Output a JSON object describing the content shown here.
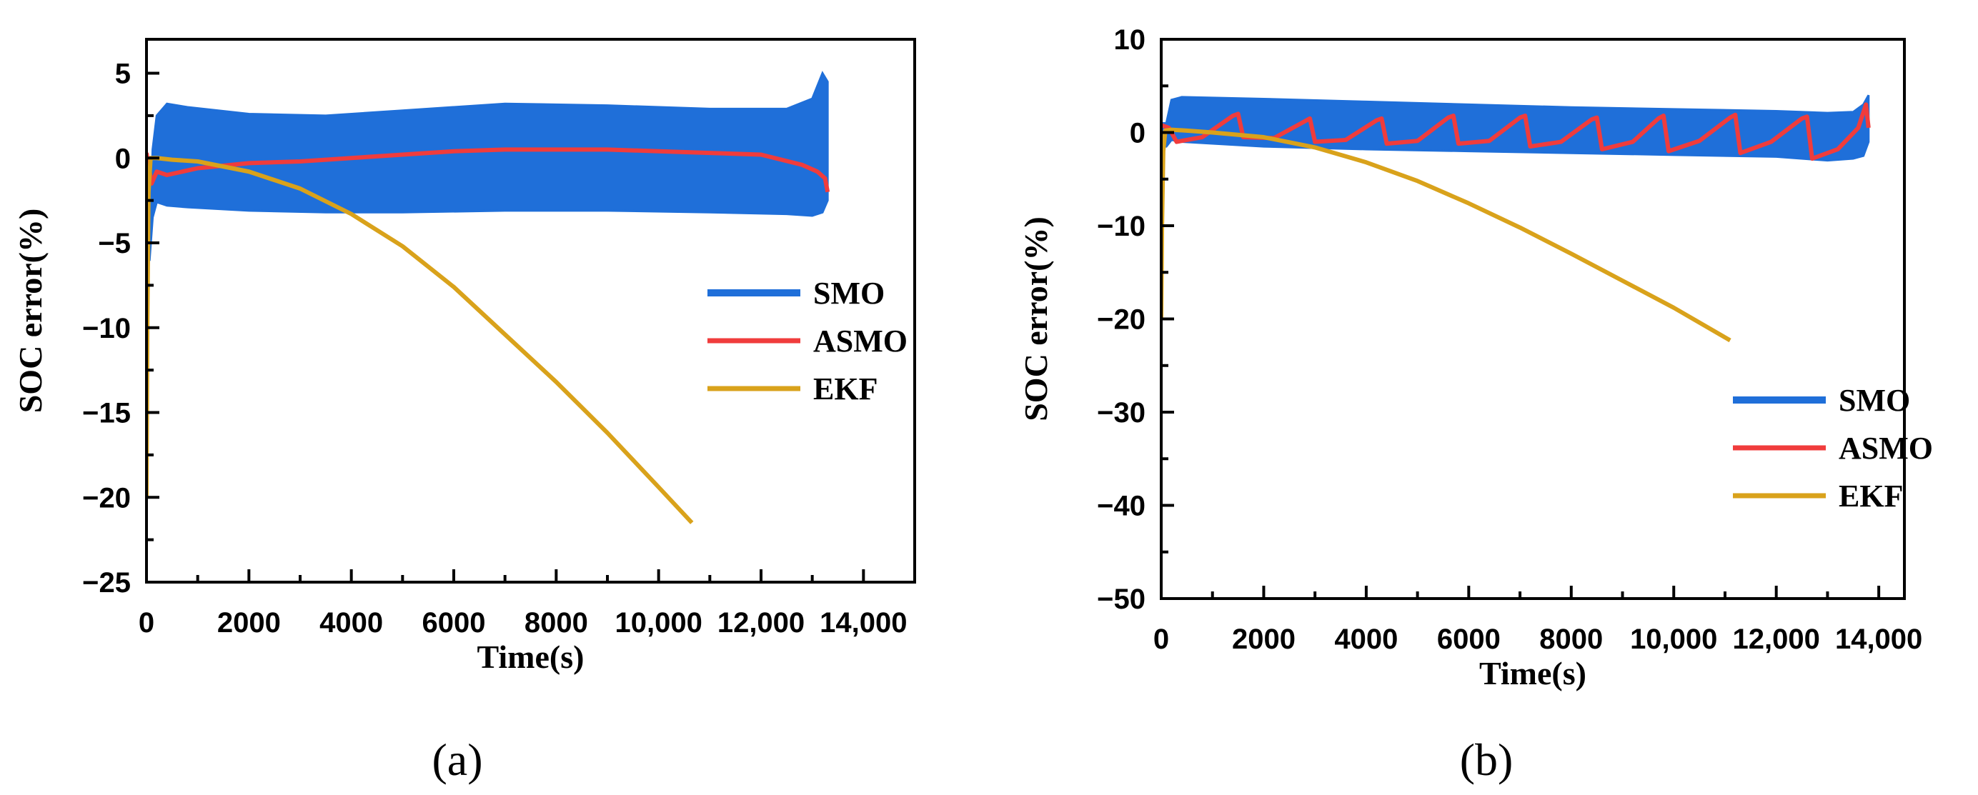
{
  "chart_data": [
    {
      "type": "line",
      "panel_label": "(a)",
      "xlabel": "Time(s)",
      "ylabel": "SOC error(%)",
      "xlim": [
        0,
        15000
      ],
      "ylim": [
        -25,
        7
      ],
      "x_ticks": [
        0,
        2000,
        4000,
        6000,
        8000,
        10000,
        12000,
        14000
      ],
      "x_tick_labels": [
        "0",
        "2000",
        "4000",
        "6000",
        "8000",
        "10,000",
        "12,000",
        "14,000"
      ],
      "y_ticks": [
        5,
        0,
        -5,
        -10,
        -15,
        -20,
        -25
      ],
      "y_tick_labels": [
        "5",
        "0",
        "−5",
        "−10",
        "−15",
        "−20",
        "−25"
      ],
      "legend_position": "center-right",
      "series": [
        {
          "name": "SMO",
          "color": "#1f6fd9",
          "x": [
            0,
            60,
            120,
            200,
            400,
            800,
            2000,
            3500,
            5000,
            7000,
            9000,
            11000,
            12500,
            13000,
            13200,
            13300
          ],
          "upper": [
            -2,
            -5,
            0.5,
            2.5,
            3.2,
            3.0,
            2.6,
            2.5,
            2.8,
            3.2,
            3.1,
            2.9,
            2.9,
            3.5,
            5.0,
            4.5
          ],
          "lower": [
            -6,
            -6,
            -3.5,
            -2.6,
            -2.8,
            -2.9,
            -3.1,
            -3.2,
            -3.2,
            -3.1,
            -3.1,
            -3.2,
            -3.3,
            -3.4,
            -3.2,
            -2.5
          ]
        },
        {
          "name": "ASMO",
          "color": "#f03c3c",
          "x": [
            0,
            100,
            200,
            400,
            1000,
            2000,
            3000,
            4000,
            5000,
            6000,
            7000,
            8000,
            9000,
            10000,
            11000,
            12000,
            12800,
            13100,
            13250,
            13300
          ],
          "y": [
            0.3,
            -1.5,
            -0.8,
            -1.0,
            -0.6,
            -0.3,
            -0.2,
            0.0,
            0.2,
            0.4,
            0.5,
            0.5,
            0.5,
            0.4,
            0.3,
            0.2,
            -0.4,
            -0.8,
            -1.2,
            -2.0
          ]
        },
        {
          "name": "EKF",
          "color": "#d9a21b",
          "x": [
            0,
            15,
            40,
            80,
            200,
            500,
            1000,
            2000,
            3000,
            4000,
            5000,
            6000,
            7000,
            8000,
            9000,
            10000,
            10650
          ],
          "y": [
            -20,
            -10,
            -2,
            0,
            0,
            -0.1,
            -0.2,
            -0.8,
            -1.8,
            -3.3,
            -5.2,
            -7.6,
            -10.4,
            -13.2,
            -16.2,
            -19.4,
            -21.5
          ]
        }
      ]
    },
    {
      "type": "line",
      "panel_label": "(b)",
      "xlabel": "Time(s)",
      "ylabel": "SOC error(%)",
      "xlim": [
        0,
        14500
      ],
      "ylim": [
        -50,
        10
      ],
      "x_ticks": [
        0,
        2000,
        4000,
        6000,
        8000,
        10000,
        12000,
        14000
      ],
      "x_tick_labels": [
        "0",
        "2000",
        "4000",
        "6000",
        "8000",
        "10,000",
        "12,000",
        "14,000"
      ],
      "y_ticks": [
        10,
        0,
        -10,
        -20,
        -30,
        -40,
        -50
      ],
      "y_tick_labels": [
        "10",
        "0",
        "−10",
        "−20",
        "−30",
        "−40",
        "−50"
      ],
      "legend_position": "center-right",
      "series": [
        {
          "name": "SMO",
          "color": "#1f6fd9",
          "x": [
            0,
            100,
            200,
            400,
            2000,
            4000,
            6000,
            8000,
            10000,
            12000,
            13000,
            13500,
            13700,
            13800
          ],
          "upper": [
            1.0,
            1.0,
            3.5,
            3.8,
            3.6,
            3.3,
            3.0,
            2.7,
            2.5,
            2.3,
            2.1,
            2.2,
            3.0,
            4.0
          ],
          "lower": [
            -1.5,
            -1.5,
            -0.8,
            -1.0,
            -1.5,
            -1.8,
            -2.0,
            -2.2,
            -2.4,
            -2.6,
            -3.0,
            -2.8,
            -2.5,
            -1.0
          ]
        },
        {
          "name": "ASMO",
          "color": "#f03c3c",
          "x": [
            0,
            150,
            300,
            800,
            1400,
            1500,
            1600,
            2200,
            2800,
            2900,
            3000,
            3600,
            4200,
            4300,
            4400,
            5000,
            5600,
            5700,
            5800,
            6400,
            7000,
            7100,
            7200,
            7800,
            8400,
            8500,
            8600,
            9200,
            9700,
            9800,
            9900,
            10500,
            11100,
            11200,
            11300,
            11900,
            12500,
            12600,
            12700,
            13200,
            13600,
            13750,
            13800
          ],
          "y": [
            0.8,
            0.5,
            -1.0,
            -0.5,
            1.8,
            2.0,
            -0.5,
            -0.6,
            1.2,
            1.5,
            -1.0,
            -0.8,
            1.3,
            1.5,
            -1.2,
            -0.9,
            1.6,
            1.8,
            -1.2,
            -0.9,
            1.6,
            1.8,
            -1.5,
            -1.0,
            1.4,
            1.6,
            -1.8,
            -1.0,
            1.5,
            1.8,
            -2.0,
            -0.9,
            1.6,
            1.9,
            -2.2,
            -1.0,
            1.5,
            1.7,
            -2.8,
            -1.8,
            0.5,
            3.0,
            0.5
          ]
        },
        {
          "name": "EKF",
          "color": "#d9a21b",
          "x": [
            0,
            15,
            40,
            80,
            200,
            500,
            1000,
            2000,
            3000,
            4000,
            5000,
            6000,
            7000,
            8000,
            9000,
            10000,
            11100
          ],
          "y": [
            -20,
            -10,
            -2,
            0.2,
            0.3,
            0.2,
            0.0,
            -0.5,
            -1.6,
            -3.2,
            -5.2,
            -7.6,
            -10.2,
            -13.0,
            -15.9,
            -18.8,
            -22.3
          ]
        }
      ]
    }
  ]
}
